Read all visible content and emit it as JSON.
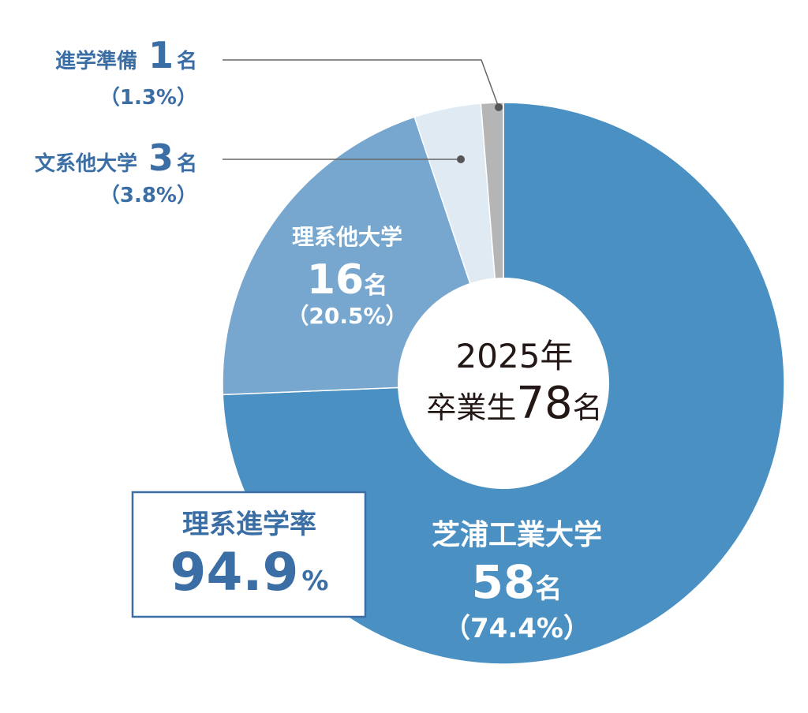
{
  "center_label": {
    "line1": "2025年",
    "line2_prefix": "卒業生",
    "line2_number": "78",
    "line2_unit": "名"
  },
  "rate_box": {
    "label": "理系進学率",
    "value": "94.9",
    "unit": "%"
  },
  "colors": {
    "shibaura": "#4a90c2",
    "science_other": "#77a7cf",
    "liberal_arts": "#dfeaf3",
    "prep": "#b5b5b5",
    "label_blue": "#3a6ea5",
    "leader_line": "#666666"
  },
  "chart_data": {
    "type": "pie",
    "style": "donut",
    "total": 78,
    "slices": [
      {
        "key": "shibaura",
        "label": "芝浦工業大学",
        "value": 58,
        "count_text": "58",
        "unit": "名",
        "percent_text": "（74.4%）",
        "color": "#4a90c2"
      },
      {
        "key": "science_other",
        "label": "理系他大学",
        "value": 16,
        "count_text": "16",
        "unit": "名",
        "percent_text": "（20.5%）",
        "color": "#77a7cf"
      },
      {
        "key": "liberal_arts",
        "label": "文系他大学",
        "value": 3,
        "count_text": "3",
        "unit": "名",
        "percent_text": "（3.8%）",
        "color": "#dfeaf3"
      },
      {
        "key": "prep",
        "label": "進学準備",
        "value": 1,
        "count_text": "1",
        "unit": "名",
        "percent_text": "（1.3%）",
        "color": "#b5b5b5"
      }
    ]
  }
}
